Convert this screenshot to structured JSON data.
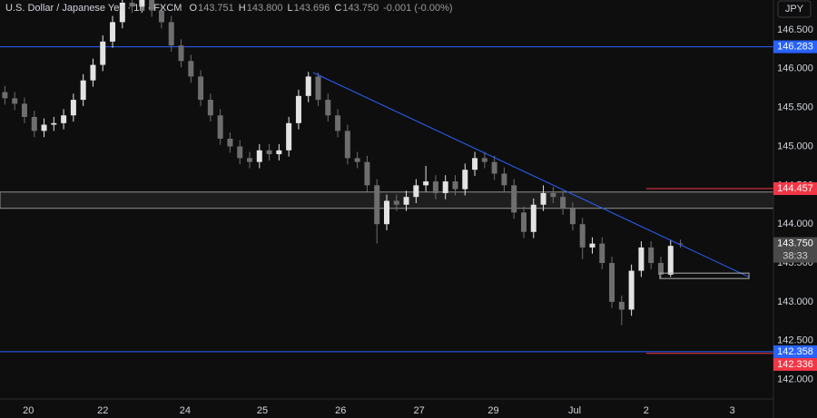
{
  "chart_data": {
    "type": "candlestick",
    "title": "U.S. Dollar / Japanese Yen · 1h · FXCM",
    "header_values": [
      {
        "key": "O",
        "text": "143.751"
      },
      {
        "key": "H",
        "text": "143.800"
      },
      {
        "key": "L",
        "text": "143.696"
      },
      {
        "key": "C",
        "text": "143.750"
      }
    ],
    "change": "-0.001 (-0.00%)",
    "currency": "JPY",
    "countdown": "38:33",
    "up_color": "#e3e3e3",
    "down_color": "#6e6e6e",
    "xlim": [
      -0.5,
      78.5
    ],
    "ylim": [
      141.75,
      146.885
    ],
    "xticks": [
      {
        "value": 2.4,
        "label": "20"
      },
      {
        "value": 10,
        "label": "22"
      },
      {
        "value": 18.4,
        "label": "24"
      },
      {
        "value": 26.3,
        "label": "25"
      },
      {
        "value": 34.3,
        "label": "26"
      },
      {
        "value": 42.3,
        "label": "27"
      },
      {
        "value": 49.9,
        "label": "29"
      },
      {
        "value": 58.2,
        "label": "Jul"
      },
      {
        "value": 65.5,
        "label": "2"
      },
      {
        "value": 74.3,
        "label": "3"
      }
    ],
    "yticks": [
      {
        "value": 146.5,
        "label": "146.500"
      },
      {
        "value": 146,
        "label": "146.000"
      },
      {
        "value": 145.5,
        "label": "145.500"
      },
      {
        "value": 145,
        "label": "145.000"
      },
      {
        "value": 144.5,
        "label": "144.500"
      },
      {
        "value": 144,
        "label": "144.000"
      },
      {
        "value": 143.5,
        "label": "143.500"
      },
      {
        "value": 143,
        "label": "143.000"
      },
      {
        "value": 142.5,
        "label": "142.500"
      },
      {
        "value": 142,
        "label": "142.000"
      }
    ],
    "open": [
      145.7,
      145.62,
      145.55,
      145.38,
      145.2,
      145.28,
      145.3,
      145.4,
      145.6,
      145.85,
      146.05,
      146.35,
      146.6,
      146.85,
      146.8,
      146.9,
      146.75,
      146.6,
      146.3,
      146.1,
      145.9,
      145.6,
      145.4,
      145.1,
      145.0,
      144.85,
      144.8,
      144.95,
      144.9,
      144.95,
      145.3,
      145.65,
      145.9,
      145.6,
      145.4,
      145.2,
      144.85,
      144.8,
      144.5,
      144.0,
      144.3,
      144.25,
      144.35,
      144.5,
      144.55,
      144.4,
      144.55,
      144.45,
      144.7,
      144.85,
      144.8,
      144.65,
      144.5,
      144.15,
      143.9,
      144.25,
      144.4,
      144.35,
      144.2,
      144.0,
      143.7,
      143.75,
      143.5,
      143.0,
      142.9,
      143.4,
      143.7,
      143.5,
      143.35,
      143.751
    ],
    "high": [
      145.78,
      145.7,
      145.63,
      145.46,
      145.36,
      145.38,
      145.48,
      145.68,
      145.93,
      146.13,
      146.43,
      146.68,
      146.93,
      146.93,
      146.98,
      146.98,
      146.83,
      146.68,
      146.38,
      146.18,
      145.98,
      145.68,
      145.48,
      145.18,
      145.08,
      144.93,
      145.03,
      145.03,
      145.03,
      145.38,
      145.73,
      145.96,
      145.95,
      145.68,
      145.48,
      145.28,
      144.93,
      144.88,
      144.58,
      144.38,
      144.38,
      144.43,
      144.58,
      144.75,
      144.63,
      144.63,
      144.63,
      144.78,
      144.93,
      144.93,
      144.88,
      144.73,
      144.58,
      144.23,
      144.33,
      144.5,
      144.48,
      144.43,
      144.28,
      144.08,
      143.83,
      143.83,
      143.58,
      143.08,
      143.48,
      143.78,
      143.78,
      143.58,
      143.8,
      143.8
    ],
    "low": [
      145.54,
      145.47,
      145.3,
      145.12,
      145.12,
      145.2,
      145.22,
      145.32,
      145.52,
      145.77,
      145.97,
      146.27,
      146.52,
      146.72,
      146.72,
      146.67,
      146.52,
      146.22,
      146.02,
      145.82,
      145.52,
      145.32,
      145.02,
      144.92,
      144.77,
      144.72,
      144.72,
      144.82,
      144.82,
      144.87,
      145.22,
      145.57,
      145.52,
      145.32,
      145.12,
      144.77,
      144.72,
      144.42,
      143.75,
      143.92,
      144.17,
      144.17,
      144.27,
      144.42,
      144.32,
      144.32,
      144.37,
      144.37,
      144.62,
      144.72,
      144.57,
      144.42,
      144.07,
      143.82,
      143.82,
      144.17,
      144.27,
      144.12,
      143.92,
      143.55,
      143.62,
      143.42,
      142.92,
      142.7,
      142.82,
      143.32,
      143.42,
      143.3,
      143.32,
      143.696
    ],
    "close": [
      145.62,
      145.55,
      145.38,
      145.2,
      145.28,
      145.3,
      145.4,
      145.6,
      145.85,
      146.05,
      146.35,
      146.6,
      146.85,
      146.8,
      146.9,
      146.75,
      146.6,
      146.3,
      146.1,
      145.9,
      145.6,
      145.4,
      145.1,
      145.0,
      144.85,
      144.8,
      144.95,
      144.9,
      144.95,
      145.3,
      145.65,
      145.9,
      145.6,
      145.4,
      145.2,
      144.85,
      144.8,
      144.5,
      144.0,
      144.3,
      144.25,
      144.35,
      144.5,
      144.55,
      144.4,
      144.55,
      144.45,
      144.7,
      144.85,
      144.8,
      144.65,
      144.5,
      144.15,
      143.9,
      144.25,
      144.4,
      144.35,
      144.2,
      144.0,
      143.7,
      143.75,
      143.5,
      143.0,
      142.9,
      143.4,
      143.7,
      143.5,
      143.35,
      143.72,
      143.75
    ],
    "levels": [
      {
        "value": 146.283,
        "color": "#2962ff"
      },
      {
        "value": 144.457,
        "color": "#f23645",
        "x_from": 65.5
      },
      {
        "value": 143.75,
        "label": "143.750",
        "color": "#4a4a4a",
        "no_line": true
      },
      {
        "value": 142.358,
        "color": "#2962ff"
      },
      {
        "value": 142.336,
        "color": "#f23645",
        "x_from": 65.5
      }
    ],
    "zone": {
      "low": 144.203,
      "high": 144.413,
      "color": "#b0b0b0"
    },
    "trendline": {
      "x": [
        31.5,
        76.0
      ],
      "y": [
        145.95,
        143.32
      ],
      "color": "#2962ff"
    },
    "box": {
      "x": [
        66.9,
        76.0
      ],
      "y": [
        143.37,
        143.3
      ],
      "color": "#b0b0b0"
    }
  }
}
